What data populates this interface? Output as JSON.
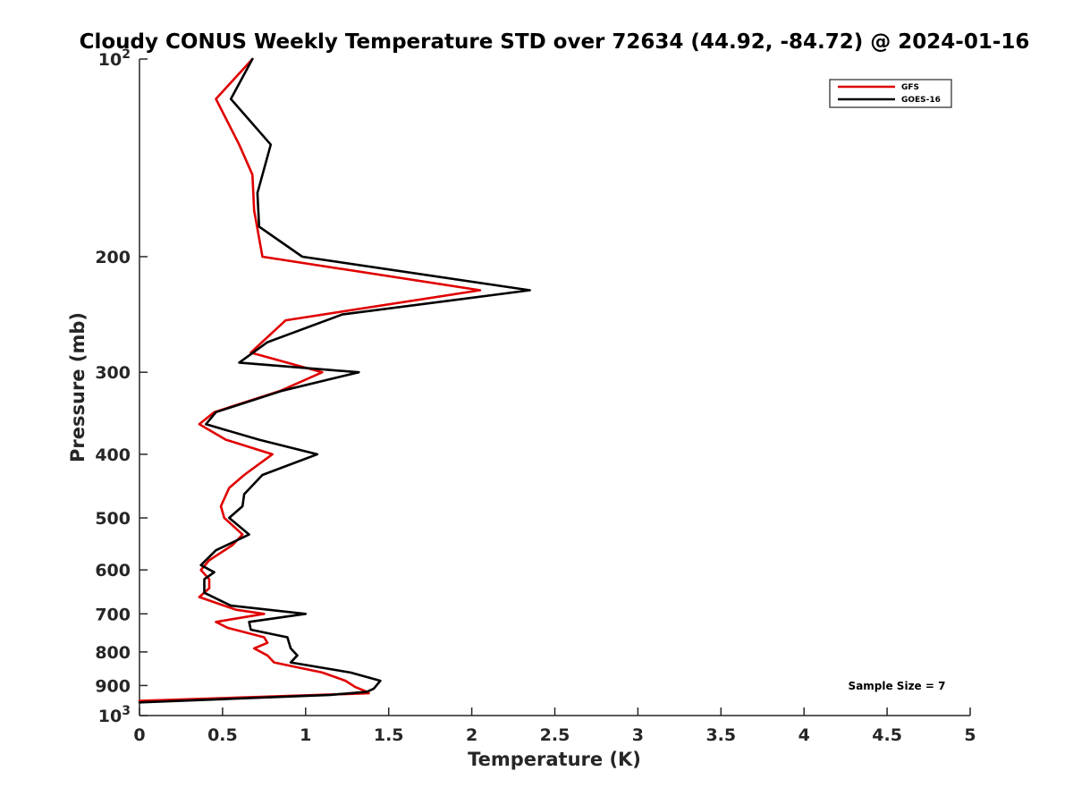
{
  "chart_data": {
    "type": "line",
    "title": "Cloudy CONUS Weekly Temperature STD over 72634 (44.92, -84.72) @ 2024-01-16",
    "xlabel": "Temperature (K)",
    "ylabel": "Pressure (mb)",
    "xlim": [
      0,
      5
    ],
    "ylim": [
      100,
      1000
    ],
    "y_scale": "log",
    "y_reversed": true,
    "x_ticks": [
      0,
      0.5,
      1,
      1.5,
      2,
      2.5,
      3,
      3.5,
      4,
      4.5,
      5
    ],
    "x_tick_labels": [
      "0",
      "0.5",
      "1",
      "1.5",
      "2",
      "2.5",
      "3",
      "3.5",
      "4",
      "4.5",
      "5"
    ],
    "y_ticks": [
      100,
      200,
      300,
      400,
      500,
      600,
      700,
      800,
      900,
      1000
    ],
    "y_tick_labels": [
      {
        "base": "10",
        "exp": "2"
      },
      {
        "base": "200",
        "exp": ""
      },
      {
        "base": "300",
        "exp": ""
      },
      {
        "base": "400",
        "exp": ""
      },
      {
        "base": "500",
        "exp": ""
      },
      {
        "base": "600",
        "exp": ""
      },
      {
        "base": "700",
        "exp": ""
      },
      {
        "base": "800",
        "exp": ""
      },
      {
        "base": "900",
        "exp": ""
      },
      {
        "base": "10",
        "exp": "3"
      }
    ],
    "grid": false,
    "legend_position": "top-right",
    "annotation": "Sample Size = 7",
    "series": [
      {
        "name": "GFS",
        "color": "#e00000",
        "points": [
          [
            0.68,
            100
          ],
          [
            0.46,
            115
          ],
          [
            0.6,
            135
          ],
          [
            0.68,
            150
          ],
          [
            0.69,
            170
          ],
          [
            0.74,
            200
          ],
          [
            2.05,
            225
          ],
          [
            0.88,
            250
          ],
          [
            0.67,
            280
          ],
          [
            1.1,
            300
          ],
          [
            0.85,
            320
          ],
          [
            0.45,
            345
          ],
          [
            0.36,
            360
          ],
          [
            0.52,
            380
          ],
          [
            0.8,
            400
          ],
          [
            0.63,
            430
          ],
          [
            0.54,
            450
          ],
          [
            0.49,
            480
          ],
          [
            0.51,
            500
          ],
          [
            0.62,
            530
          ],
          [
            0.56,
            550
          ],
          [
            0.42,
            580
          ],
          [
            0.37,
            600
          ],
          [
            0.42,
            620
          ],
          [
            0.42,
            640
          ],
          [
            0.36,
            660
          ],
          [
            0.58,
            690
          ],
          [
            0.75,
            700
          ],
          [
            0.46,
            720
          ],
          [
            0.53,
            735
          ],
          [
            0.75,
            760
          ],
          [
            0.77,
            775
          ],
          [
            0.69,
            790
          ],
          [
            0.77,
            810
          ],
          [
            0.81,
            830
          ],
          [
            1.1,
            860
          ],
          [
            1.24,
            885
          ],
          [
            1.3,
            905
          ],
          [
            1.37,
            920
          ],
          [
            1.38,
            925
          ],
          [
            0.0,
            950
          ]
        ]
      },
      {
        "name": "GOES-16",
        "color": "#000000",
        "points": [
          [
            0.68,
            100
          ],
          [
            0.55,
            115
          ],
          [
            0.79,
            135
          ],
          [
            0.71,
            160
          ],
          [
            0.72,
            180
          ],
          [
            0.98,
            200
          ],
          [
            2.35,
            225
          ],
          [
            1.22,
            245
          ],
          [
            0.77,
            270
          ],
          [
            0.6,
            290
          ],
          [
            1.32,
            300
          ],
          [
            0.86,
            320
          ],
          [
            0.46,
            345
          ],
          [
            0.4,
            360
          ],
          [
            0.72,
            380
          ],
          [
            1.07,
            400
          ],
          [
            0.74,
            430
          ],
          [
            0.63,
            460
          ],
          [
            0.62,
            480
          ],
          [
            0.54,
            500
          ],
          [
            0.66,
            530
          ],
          [
            0.46,
            560
          ],
          [
            0.37,
            590
          ],
          [
            0.45,
            605
          ],
          [
            0.39,
            620
          ],
          [
            0.39,
            650
          ],
          [
            0.55,
            680
          ],
          [
            1.0,
            700
          ],
          [
            0.66,
            720
          ],
          [
            0.67,
            740
          ],
          [
            0.89,
            760
          ],
          [
            0.91,
            790
          ],
          [
            0.95,
            810
          ],
          [
            0.91,
            830
          ],
          [
            1.27,
            860
          ],
          [
            1.45,
            885
          ],
          [
            1.41,
            910
          ],
          [
            1.37,
            920
          ],
          [
            1.15,
            930
          ],
          [
            0.0,
            955
          ]
        ]
      }
    ]
  }
}
